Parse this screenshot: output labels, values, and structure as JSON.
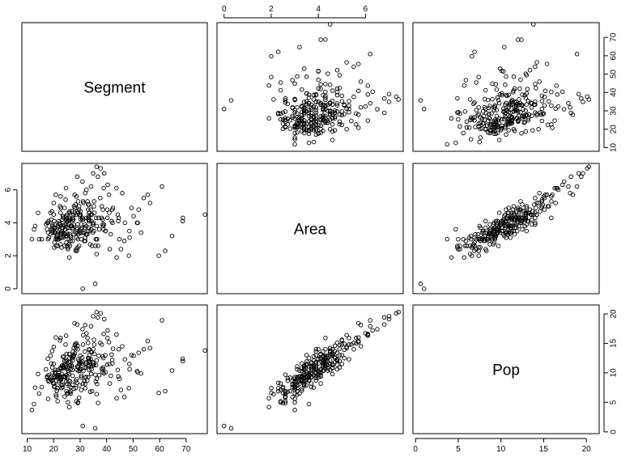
{
  "chart_data": {
    "type": "scatter",
    "variables": [
      "Segment",
      "Area",
      "Pop"
    ],
    "axis_ticks": {
      "Segment": [
        "10",
        "20",
        "30",
        "40",
        "50",
        "60",
        "70"
      ],
      "Area": [
        "0",
        "2",
        "4",
        "6"
      ],
      "Pop": [
        "0",
        "5",
        "10",
        "15",
        "20"
      ]
    },
    "ranges": {
      "Segment": [
        8,
        78
      ],
      "Area": [
        -0.3,
        7.6
      ],
      "Pop": [
        -0.3,
        21.5
      ]
    },
    "grid": false,
    "point_style": "open-circle",
    "points": [
      [
        20.2,
        4.1,
        8.2
      ],
      [
        22.5,
        3.9,
        9.1
      ],
      [
        36.2,
        2.1,
        6.4
      ],
      [
        26.4,
        3.2,
        6.5
      ],
      [
        29.9,
        4.4,
        10.4
      ],
      [
        14.1,
        4.6,
        9.8
      ],
      [
        32.3,
        3.3,
        11.6
      ],
      [
        25.3,
        2.5,
        6.6
      ],
      [
        27.2,
        4.3,
        12.1
      ],
      [
        11.8,
        3.0,
        3.7
      ],
      [
        12.6,
        3.6,
        4.7
      ],
      [
        36.8,
        2.6,
        4.9
      ],
      [
        18.1,
        4.1,
        9.6
      ],
      [
        18.8,
        4.6,
        12.9
      ],
      [
        23.7,
        3.1,
        11.1
      ],
      [
        39.0,
        3.9,
        9.9
      ],
      [
        21.5,
        3.0,
        7.4
      ],
      [
        19.6,
        3.4,
        9.1
      ],
      [
        28.4,
        4.5,
        14.2
      ],
      [
        21.5,
        2.6,
        5.2
      ],
      [
        21.2,
        3.3,
        7.0
      ],
      [
        32.4,
        4.3,
        11.8
      ],
      [
        29.2,
        5.3,
        12.3
      ],
      [
        23.2,
        3.7,
        11.2
      ],
      [
        44.2,
        4.5,
        10.5
      ],
      [
        26.9,
        3.8,
        11.1
      ],
      [
        20.2,
        2.5,
        7.6
      ],
      [
        51.5,
        4.0,
        10.3
      ],
      [
        34.1,
        6.2,
        17.9
      ],
      [
        42.4,
        4.9,
        14.1
      ],
      [
        23.6,
        4.4,
        10.8
      ],
      [
        19.7,
        3.5,
        8.8
      ],
      [
        21.0,
        2.6,
        6.0
      ],
      [
        29.7,
        3.5,
        7.9
      ],
      [
        33.0,
        4.8,
        15.1
      ],
      [
        29.1,
        3.9,
        14.0
      ],
      [
        20.9,
        3.1,
        6.3
      ],
      [
        25.9,
        1.9,
        4.2
      ],
      [
        41.2,
        2.4,
        8.2
      ],
      [
        33.0,
        5.1,
        12.5
      ],
      [
        38.9,
        6.1,
        16.6
      ],
      [
        35.2,
        3.5,
        11.3
      ],
      [
        19.0,
        3.6,
        8.8
      ],
      [
        32.7,
        3.3,
        8.7
      ],
      [
        25.8,
        3.7,
        9.8
      ],
      [
        35.2,
        5.0,
        15.6
      ],
      [
        38.6,
        4.8,
        10.6
      ],
      [
        20.7,
        3.4,
        10.5
      ],
      [
        29.3,
        4.6,
        10.9
      ],
      [
        30.4,
        3.6,
        9.2
      ],
      [
        25.5,
        4.1,
        10.1
      ],
      [
        30.4,
        3.9,
        9.5
      ],
      [
        30.1,
        4.7,
        11.8
      ],
      [
        34.2,
        3.6,
        9.8
      ],
      [
        31.9,
        2.9,
        8.1
      ],
      [
        27.1,
        3.7,
        10.5
      ],
      [
        33.3,
        4.1,
        12.4
      ],
      [
        17.9,
        3.4,
        8.7
      ],
      [
        23.3,
        3.4,
        8.0
      ],
      [
        31.6,
        2.9,
        8.6
      ],
      [
        29.9,
        3.4,
        10.7
      ],
      [
        37.6,
        5.5,
        15.1
      ],
      [
        29.8,
        4.5,
        11.5
      ],
      [
        31.8,
        3.9,
        13.6
      ],
      [
        28.3,
        2.3,
        7.4
      ],
      [
        52.1,
        4.8,
        13.4
      ],
      [
        36.0,
        4.3,
        11.3
      ],
      [
        22.9,
        3.4,
        9.2
      ],
      [
        24.8,
        3.4,
        9.6
      ],
      [
        22.6,
        3.3,
        8.9
      ],
      [
        24.6,
        4.4,
        12.0
      ],
      [
        31.2,
        4.2,
        10.3
      ],
      [
        27.6,
        4.5,
        14.2
      ],
      [
        17.8,
        4.0,
        12.4
      ],
      [
        24.1,
        3.9,
        10.8
      ],
      [
        30.4,
        3.0,
        7.1
      ],
      [
        22.8,
        3.3,
        8.8
      ],
      [
        34.8,
        3.9,
        11.8
      ],
      [
        49.4,
        4.9,
        13.0
      ],
      [
        17.6,
        4.0,
        9.2
      ],
      [
        23.0,
        2.5,
        7.4
      ],
      [
        19.6,
        3.9,
        10.0
      ],
      [
        24.1,
        2.6,
        6.0
      ],
      [
        40.2,
        4.8,
        11.4
      ],
      [
        38.2,
        5.0,
        14.8
      ],
      [
        39.5,
        3.5,
        13.0
      ],
      [
        17.5,
        3.6,
        9.4
      ],
      [
        18.9,
        3.3,
        9.3
      ],
      [
        33.7,
        3.5,
        11.9
      ],
      [
        18.2,
        3.1,
        8.5
      ],
      [
        35.3,
        5.3,
        14.8
      ],
      [
        35.9,
        3.0,
        8.5
      ],
      [
        37.0,
        4.3,
        12.9
      ],
      [
        35.8,
        2.6,
        9.7
      ],
      [
        22.3,
        4.0,
        9.6
      ],
      [
        20.3,
        2.8,
        9.2
      ],
      [
        25.8,
        3.0,
        7.8
      ],
      [
        13.0,
        3.8,
        7.5
      ],
      [
        15.5,
        3.0,
        7.6
      ],
      [
        17.9,
        3.0,
        5.6
      ],
      [
        30.9,
        4.2,
        11.9
      ],
      [
        21.2,
        3.6,
        9.6
      ],
      [
        35.0,
        3.9,
        11.6
      ],
      [
        40.3,
        4.3,
        15.9
      ],
      [
        26.0,
        4.7,
        12.5
      ],
      [
        22.7,
        4.9,
        10.9
      ],
      [
        33.4,
        4.4,
        11.3
      ],
      [
        33.4,
        4.1,
        10.5
      ],
      [
        19.4,
        4.7,
        13.7
      ],
      [
        31.9,
        3.1,
        7.4
      ],
      [
        48.4,
        2.0,
        7.4
      ],
      [
        25.1,
        3.2,
        8.1
      ],
      [
        28.0,
        4.9,
        14.7
      ],
      [
        19.5,
        3.8,
        10.9
      ],
      [
        34.3,
        4.1,
        10.6
      ],
      [
        26.2,
        3.3,
        8.6
      ],
      [
        24.7,
        3.9,
        11.0
      ],
      [
        25.1,
        2.6,
        6.4
      ],
      [
        39.6,
        3.5,
        10.1
      ],
      [
        27.6,
        3.3,
        7.3
      ],
      [
        30.4,
        3.4,
        10.6
      ],
      [
        24.8,
        4.2,
        11.3
      ],
      [
        43.8,
        1.9,
        5.7
      ],
      [
        24.7,
        3.2,
        8.5
      ],
      [
        29.1,
        3.4,
        11.1
      ],
      [
        22.6,
        4.6,
        10.8
      ],
      [
        34.0,
        4.5,
        13.6
      ],
      [
        22.0,
        3.0,
        8.4
      ],
      [
        44.6,
        4.3,
        14.0
      ],
      [
        24.8,
        2.8,
        6.9
      ],
      [
        33.1,
        4.3,
        12.5
      ],
      [
        27.9,
        5.7,
        18.4
      ],
      [
        25.1,
        3.7,
        9.3
      ],
      [
        33.4,
        5.1,
        13.9
      ],
      [
        19.9,
        3.7,
        8.2
      ],
      [
        23.5,
        3.7,
        7.6
      ],
      [
        22.1,
        3.9,
        8.7
      ],
      [
        36.2,
        3.8,
        12.1
      ],
      [
        26.7,
        3.8,
        11.3
      ],
      [
        26.3,
        4.2,
        11.9
      ],
      [
        30.2,
        4.2,
        11.7
      ],
      [
        27.4,
        4.2,
        12.7
      ],
      [
        25.4,
        2.4,
        5.0
      ],
      [
        31.1,
        5.3,
        14.8
      ],
      [
        26.4,
        2.9,
        7.6
      ],
      [
        26.4,
        3.8,
        10.6
      ],
      [
        33.2,
        4.2,
        11.1
      ],
      [
        28.9,
        3.7,
        11.1
      ],
      [
        28.6,
        5.6,
        15.0
      ],
      [
        33.5,
        4.6,
        13.0
      ],
      [
        20.6,
        3.7,
        10.1
      ],
      [
        23.8,
        3.2,
        9.4
      ],
      [
        28.5,
        2.4,
        5.2
      ],
      [
        42.2,
        4.0,
        11.6
      ],
      [
        27.2,
        3.6,
        9.5
      ],
      [
        33.3,
        4.2,
        12.1
      ],
      [
        20.4,
        3.9,
        10.0
      ],
      [
        31.8,
        3.7,
        9.2
      ],
      [
        31.1,
        3.4,
        8.2
      ],
      [
        25.7,
        3.9,
        11.8
      ],
      [
        41.9,
        4.1,
        13.1
      ],
      [
        23.0,
        3.1,
        7.9
      ],
      [
        26.2,
        4.3,
        11.2
      ],
      [
        27.4,
        4.2,
        12.9
      ],
      [
        24.5,
        4.3,
        11.2
      ],
      [
        19.1,
        4.2,
        11.6
      ],
      [
        44.4,
        4.1,
        9.4
      ],
      [
        32.8,
        5.3,
        15.9
      ],
      [
        34.0,
        4.8,
        12.3
      ],
      [
        41.0,
        4.6,
        11.5
      ],
      [
        22.4,
        5.0,
        15.5
      ],
      [
        21.9,
        4.1,
        10.1
      ],
      [
        25.7,
        2.7,
        8.7
      ],
      [
        46.7,
        2.9,
        5.9
      ],
      [
        29.0,
        4.7,
        14.6
      ],
      [
        27.6,
        3.9,
        13.0
      ],
      [
        20.0,
        4.5,
        11.5
      ],
      [
        29.1,
        2.5,
        4.9
      ],
      [
        24.3,
        3.6,
        9.4
      ],
      [
        22.6,
        2.7,
        9.1
      ],
      [
        32.2,
        3.3,
        9.3
      ],
      [
        28.2,
        5.1,
        14.9
      ],
      [
        37.2,
        3.6,
        9.6
      ],
      [
        34.4,
        4.5,
        13.5
      ],
      [
        21.4,
        3.0,
        7.4
      ],
      [
        25.9,
        4.6,
        13.2
      ],
      [
        24.1,
        4.9,
        12.0
      ],
      [
        26.1,
        2.6,
        6.7
      ],
      [
        20.4,
        3.4,
        7.8
      ],
      [
        31.2,
        5.2,
        16.4
      ],
      [
        28.6,
        3.1,
        8.9
      ],
      [
        25.3,
        3.3,
        10.8
      ],
      [
        26.5,
        3.1,
        6.9
      ],
      [
        26.1,
        4.6,
        11.3
      ],
      [
        35.0,
        4.0,
        14.0
      ],
      [
        33.3,
        3.7,
        11.8
      ],
      [
        38.1,
        4.3,
        10.7
      ],
      [
        23.9,
        3.8,
        12.8
      ],
      [
        27.2,
        2.9,
        8.0
      ],
      [
        34.1,
        3.6,
        11.1
      ],
      [
        23.1,
        3.5,
        9.8
      ],
      [
        25.1,
        4.5,
        12.1
      ],
      [
        24.3,
        3.3,
        9.2
      ],
      [
        29.6,
        5.0,
        11.5
      ],
      [
        19.5,
        3.6,
        8.7
      ],
      [
        31.7,
        3.4,
        10.9
      ],
      [
        27.0,
        4.1,
        12.5
      ],
      [
        23.5,
        4.4,
        12.7
      ],
      [
        38.8,
        3.6,
        12.5
      ],
      [
        38.5,
        3.9,
        10.1
      ],
      [
        30.8,
        4.3,
        12.6
      ],
      [
        21.4,
        3.2,
        9.4
      ],
      [
        23.3,
        4.2,
        11.3
      ],
      [
        41.6,
        3.3,
        9.5
      ],
      [
        33.4,
        4.6,
        14.0
      ],
      [
        22.4,
        3.1,
        9.3
      ],
      [
        29.6,
        2.6,
        5.8
      ],
      [
        38.5,
        4.2,
        12.8
      ],
      [
        14.5,
        3.0,
        6.5
      ],
      [
        34.8,
        3.4,
        11.2
      ],
      [
        33.0,
        3.5,
        9.3
      ],
      [
        25.5,
        4.2,
        10.4
      ],
      [
        28.8,
        3.6,
        10.5
      ],
      [
        24.9,
        4.1,
        13.2
      ],
      [
        21.4,
        3.1,
        9.2
      ],
      [
        28.0,
        4.6,
        13.3
      ],
      [
        23.7,
        4.3,
        11.0
      ],
      [
        21.6,
        3.8,
        9.6
      ],
      [
        35.4,
        4.6,
        13.2
      ],
      [
        17.1,
        3.9,
        10.6
      ],
      [
        27.3,
        4.2,
        13.6
      ],
      [
        50.2,
        4.4,
        12.9
      ],
      [
        20.8,
        3.0,
        9.3
      ],
      [
        26.8,
        4.7,
        12.7
      ],
      [
        48.7,
        3.1,
        10.6
      ],
      [
        29.4,
        3.3,
        10.3
      ],
      [
        34.5,
        2.6,
        6.9
      ],
      [
        36.3,
        3.0,
        9.0
      ],
      [
        36.4,
        3.0,
        8.1
      ],
      [
        28.3,
        3.4,
        8.6
      ],
      [
        33.8,
        2.7,
        6.8
      ],
      [
        30.7,
        3.7,
        11.6
      ],
      [
        32.3,
        3.8,
        10.9
      ],
      [
        27.7,
        5.0,
        13.0
      ],
      [
        29.2,
        3.0,
        5.0
      ],
      [
        21.6,
        3.7,
        10.5
      ],
      [
        30.1,
        4.5,
        12.9
      ],
      [
        22.6,
        3.4,
        10.6
      ],
      [
        29.6,
        4.8,
        12.0
      ],
      [
        38.7,
        3.8,
        10.9
      ],
      [
        28.8,
        2.3,
        8.3
      ],
      [
        55.5,
        5.7,
        15.4
      ],
      [
        64.7,
        3.2,
        10.4
      ],
      [
        68.7,
        4.1,
        12.4
      ],
      [
        68.8,
        4.3,
        12.0
      ],
      [
        77.1,
        4.5,
        13.8
      ],
      [
        60.9,
        6.2,
        18.9
      ],
      [
        53.0,
        3.4,
        9.9
      ],
      [
        51.7,
        4.0,
        10.1
      ],
      [
        54.0,
        5.5,
        14.0
      ],
      [
        59.7,
        2.0,
        6.6
      ],
      [
        62.1,
        2.3,
        6.9
      ],
      [
        56.4,
        5.2,
        14.2
      ],
      [
        48.6,
        3.5,
        11.5
      ],
      [
        46.9,
        4.0,
        12.3
      ],
      [
        44.8,
        3.0,
        9.0
      ],
      [
        42.1,
        4.8,
        12.2
      ],
      [
        40.9,
        5.7,
        15.2
      ],
      [
        45.9,
        5.8,
        14.5
      ],
      [
        43.7,
        6.1,
        16.5
      ],
      [
        36.7,
        6.8,
        19.4
      ],
      [
        34.9,
        7.0,
        19.6
      ],
      [
        37.7,
        7.3,
        20.1
      ],
      [
        39.1,
        7.0,
        19.1
      ],
      [
        30.9,
        6.5,
        17.4
      ],
      [
        28.9,
        6.8,
        18.2
      ],
      [
        24.7,
        6.1,
        16.3
      ],
      [
        20.8,
        5.7,
        16.0
      ],
      [
        24.5,
        5.4,
        14.8
      ],
      [
        22.6,
        5.6,
        15.9
      ],
      [
        31.9,
        5.8,
        18.1
      ],
      [
        20.0,
        5.2,
        14.4
      ],
      [
        36.2,
        7.4,
        20.3
      ],
      [
        32.4,
        6.0,
        16.7
      ],
      [
        31.0,
        0.0,
        1.0
      ],
      [
        35.7,
        0.3,
        0.6
      ],
      [
        40.4,
        6.3,
        17.2
      ],
      [
        45.4,
        2.4,
        7.1
      ]
    ]
  }
}
